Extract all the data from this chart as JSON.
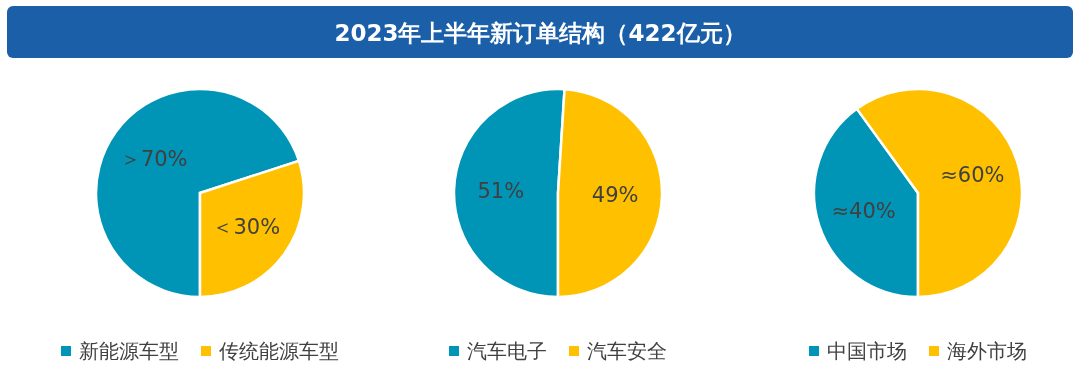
{
  "chart_data": [
    {
      "type": "other",
      "title": "2023年上半年新订单结构（422亿元）"
    },
    {
      "type": "pie",
      "categories": [
        "新能源车型",
        "传统能源车型"
      ],
      "values": [
        70,
        30
      ],
      "value_labels": [
        "＞70%",
        "＜30%"
      ],
      "colors": [
        "#0095b6",
        "#ffc000"
      ],
      "legend": "bottom"
    },
    {
      "type": "pie",
      "categories": [
        "汽车电子",
        "汽车安全"
      ],
      "values": [
        51,
        49
      ],
      "value_labels": [
        "51%",
        "49%"
      ],
      "colors": [
        "#0095b6",
        "#ffc000"
      ],
      "legend": "bottom"
    },
    {
      "type": "pie",
      "categories": [
        "中国市场",
        "海外市场"
      ],
      "values": [
        40,
        60
      ],
      "value_labels": [
        "≈40%",
        "≈60%"
      ],
      "colors": [
        "#0095b6",
        "#ffc000"
      ],
      "legend": "bottom"
    }
  ]
}
